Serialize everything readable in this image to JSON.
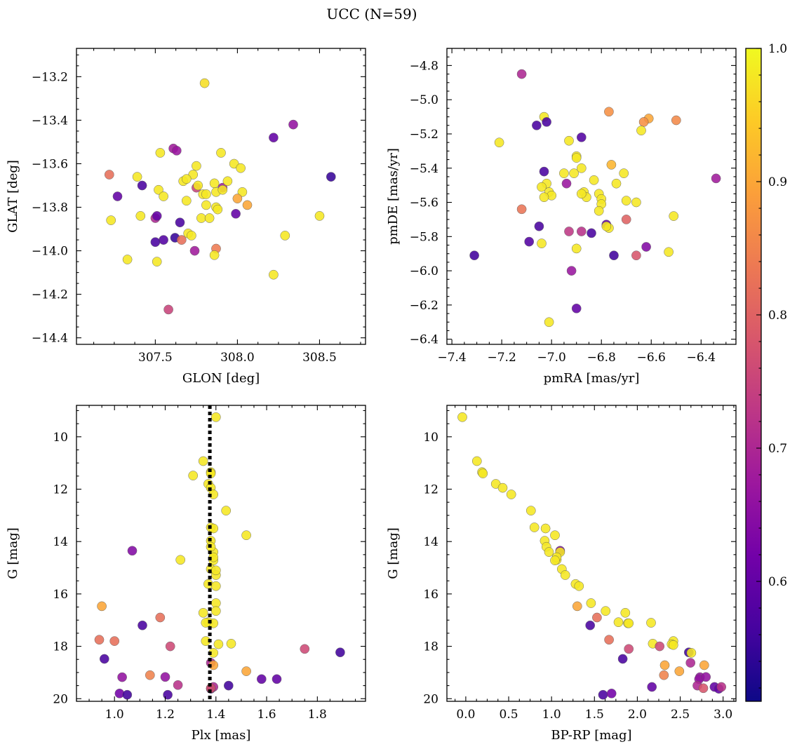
{
  "title": "UCC (N=59)",
  "colorbar": {
    "vmin": 0.51,
    "vmax": 1.0,
    "ticks": [
      0.6,
      0.7,
      0.8,
      0.9,
      1.0
    ],
    "tick_labels": [
      "0.6",
      "0.7",
      "0.8",
      "0.9",
      "1.0"
    ],
    "colormap": "plasma",
    "colormap_stops": [
      "#0d0887",
      "#46039f",
      "#7201a8",
      "#9c179e",
      "#bd3786",
      "#d8576b",
      "#ed7953",
      "#fb9f3a",
      "#fdca26",
      "#f0f921"
    ]
  },
  "chart_data": [
    {
      "type": "scatter",
      "name": "spatial",
      "xlabel": "GLON [deg]",
      "ylabel": "GLAT [deg]",
      "xlim": [
        307.02,
        308.78
      ],
      "ylim": [
        -14.43,
        -13.07
      ],
      "xticks": [
        307.5,
        308.0,
        308.5
      ],
      "xtick_labels": [
        "307.5",
        "308.0",
        "308.5"
      ],
      "yticks": [
        -14.4,
        -14.2,
        -14.0,
        -13.8,
        -13.6,
        -13.4,
        -13.2
      ],
      "ytick_labels": [
        "−14.4",
        "−14.2",
        "−14.0",
        "−13.8",
        "−13.6",
        "−13.4",
        "−13.2"
      ],
      "x": [
        307.8,
        308.34,
        308.22,
        307.61,
        307.63,
        307.53,
        307.9,
        307.75,
        307.98,
        308.02,
        307.22,
        307.39,
        307.27,
        307.42,
        307.52,
        307.67,
        307.73,
        307.69,
        307.86,
        307.91,
        307.94,
        308.03,
        308.0,
        308.06,
        307.87,
        307.55,
        307.41,
        307.23,
        307.5,
        307.51,
        307.69,
        307.81,
        307.75,
        307.78,
        307.83,
        307.87,
        307.99,
        307.65,
        307.7,
        307.55,
        307.5,
        307.62,
        307.72,
        307.66,
        307.87,
        307.74,
        307.51,
        307.33,
        307.86,
        308.22,
        308.29,
        308.5,
        308.57,
        307.58,
        307.88,
        307.79,
        307.91,
        307.81,
        307.76
      ],
      "y": [
        -13.23,
        -13.42,
        -13.48,
        -13.53,
        -13.54,
        -13.55,
        -13.55,
        -13.61,
        -13.6,
        -13.62,
        -13.65,
        -13.66,
        -13.75,
        -13.7,
        -13.72,
        -13.68,
        -13.65,
        -13.67,
        -13.69,
        -13.71,
        -13.68,
        -13.73,
        -13.76,
        -13.79,
        -13.73,
        -13.75,
        -13.84,
        -13.86,
        -13.85,
        -13.84,
        -13.77,
        -13.79,
        -13.71,
        -13.85,
        -13.85,
        -13.8,
        -13.83,
        -13.87,
        -13.92,
        -13.95,
        -13.96,
        -13.94,
        -13.93,
        -13.95,
        -13.99,
        -14.0,
        -14.05,
        -14.04,
        -14.02,
        -14.11,
        -13.93,
        -13.84,
        -13.66,
        -14.27,
        -13.81,
        -13.74,
        -13.72,
        -13.74,
        -13.7
      ],
      "c": [
        0.97,
        0.66,
        0.6,
        0.68,
        0.67,
        0.98,
        0.98,
        0.98,
        0.98,
        0.98,
        0.82,
        0.98,
        0.6,
        0.57,
        0.98,
        0.98,
        0.98,
        0.98,
        0.98,
        0.68,
        0.98,
        0.98,
        0.9,
        0.9,
        0.98,
        0.98,
        0.98,
        0.98,
        0.7,
        0.6,
        0.98,
        0.98,
        0.75,
        0.98,
        0.98,
        0.98,
        0.6,
        0.57,
        0.98,
        0.58,
        0.57,
        0.55,
        0.98,
        0.82,
        0.84,
        0.68,
        0.98,
        0.98,
        0.98,
        0.98,
        0.98,
        0.98,
        0.55,
        0.75,
        0.98,
        0.98,
        0.98,
        0.98,
        0.98
      ]
    },
    {
      "type": "scatter",
      "name": "proper-motion",
      "xlabel": "pmRA [mas/yr]",
      "ylabel": "pmDE [mas/yr]",
      "xlim": [
        -7.42,
        -6.26
      ],
      "ylim": [
        -6.43,
        -4.7
      ],
      "xticks": [
        -7.4,
        -7.2,
        -7.0,
        -6.8,
        -6.6,
        -6.4
      ],
      "xtick_labels": [
        "−7.4",
        "−7.2",
        "−7.0",
        "−6.8",
        "−6.6",
        "−6.4"
      ],
      "yticks": [
        -6.4,
        -6.2,
        -6.0,
        -5.8,
        -5.6,
        -5.4,
        -5.2,
        -5.0,
        -4.8
      ],
      "ytick_labels": [
        "−6.4",
        "−6.2",
        "−6.0",
        "−5.8",
        "−5.6",
        "−5.4",
        "−5.2",
        "−5.0",
        "−4.8"
      ],
      "x": [
        -7.12,
        -7.03,
        -7.06,
        -7.02,
        -6.88,
        -6.77,
        -6.61,
        -6.63,
        -6.5,
        -6.64,
        -7.21,
        -6.93,
        -6.9,
        -6.9,
        -7.03,
        -6.95,
        -6.91,
        -6.76,
        -6.88,
        -6.83,
        -6.71,
        -6.94,
        -6.74,
        -7.02,
        -7.04,
        -7.01,
        -7.0,
        -6.87,
        -6.86,
        -6.81,
        -6.8,
        -6.8,
        -6.81,
        -6.7,
        -6.66,
        -6.51,
        -7.12,
        -7.03,
        -6.78,
        -6.77,
        -6.7,
        -7.05,
        -7.09,
        -6.88,
        -6.93,
        -6.62,
        -6.53,
        -6.9,
        -6.66,
        -6.75,
        -6.92,
        -7.31,
        -6.34,
        -6.9,
        -7.01,
        -6.84,
        -7.04,
        -6.78,
        -6.88
      ],
      "y": [
        -4.85,
        -5.1,
        -5.15,
        -5.13,
        -5.22,
        -5.07,
        -5.11,
        -5.13,
        -5.12,
        -5.18,
        -5.25,
        -5.24,
        -5.33,
        -5.34,
        -5.42,
        -5.43,
        -5.43,
        -5.38,
        -5.4,
        -5.47,
        -5.43,
        -5.49,
        -5.49,
        -5.49,
        -5.51,
        -5.54,
        -5.56,
        -5.54,
        -5.57,
        -5.55,
        -5.58,
        -5.61,
        -5.65,
        -5.59,
        -5.6,
        -5.68,
        -5.64,
        -5.57,
        -5.73,
        -5.75,
        -5.7,
        -5.74,
        -5.83,
        -5.77,
        -5.77,
        -5.86,
        -5.89,
        -5.87,
        -5.91,
        -5.91,
        -6.0,
        -5.91,
        -5.46,
        -6.22,
        -6.3,
        -5.78,
        -5.84,
        -5.74,
        -5.55
      ],
      "c": [
        0.7,
        0.98,
        0.57,
        0.57,
        0.58,
        0.87,
        0.9,
        0.87,
        0.86,
        0.98,
        0.98,
        0.98,
        0.98,
        0.98,
        0.57,
        0.98,
        0.98,
        0.92,
        0.98,
        0.98,
        0.98,
        0.67,
        0.98,
        0.98,
        0.98,
        0.98,
        0.98,
        0.98,
        0.98,
        0.98,
        0.98,
        0.98,
        0.98,
        0.98,
        0.98,
        0.98,
        0.83,
        0.98,
        0.6,
        0.98,
        0.8,
        0.57,
        0.58,
        0.72,
        0.73,
        0.64,
        0.98,
        0.98,
        0.78,
        0.56,
        0.67,
        0.56,
        0.68,
        0.6,
        0.98,
        0.57,
        0.98,
        0.98,
        0.98
      ]
    },
    {
      "type": "scatter",
      "name": "plx-mag",
      "xlabel": "Plx [mas]",
      "ylabel": "G [mag]",
      "xlim": [
        0.85,
        1.99
      ],
      "ylim": [
        20.1,
        8.8
      ],
      "y_inverted": true,
      "vline_x": 1.376,
      "vline_style": "dotted",
      "xticks": [
        1.0,
        1.2,
        1.4,
        1.6,
        1.8
      ],
      "xtick_labels": [
        "1.0",
        "1.2",
        "1.4",
        "1.6",
        "1.8"
      ],
      "yticks": [
        10,
        12,
        14,
        16,
        18,
        20
      ],
      "ytick_labels": [
        "10",
        "12",
        "14",
        "16",
        "18",
        "20"
      ],
      "x": [
        1.4,
        1.35,
        1.38,
        1.31,
        1.37,
        1.38,
        1.39,
        1.38,
        1.44,
        1.38,
        1.39,
        1.52,
        1.38,
        1.07,
        1.39,
        1.38,
        1.26,
        1.39,
        1.39,
        1.38,
        1.4,
        1.37,
        1.4,
        1.4,
        1.35,
        1.37,
        1.39,
        1.4,
        1.36,
        0.95,
        1.18,
        1.11,
        1.0,
        1.41,
        1.46,
        1.36,
        0.94,
        1.75,
        1.22,
        1.89,
        0.96,
        1.38,
        1.39,
        1.52,
        1.14,
        1.2,
        1.03,
        1.25,
        1.58,
        1.64,
        1.45,
        1.39,
        1.38,
        1.21,
        1.02,
        1.05,
        1.38,
        1.39,
        1.4
      ],
      "y": [
        9.25,
        10.93,
        11.35,
        11.48,
        11.8,
        11.95,
        12.2,
        11.4,
        12.82,
        13.46,
        13.5,
        13.76,
        13.97,
        14.35,
        14.4,
        14.2,
        14.7,
        14.72,
        14.6,
        15.05,
        15.28,
        15.62,
        15.7,
        16.35,
        16.72,
        17.08,
        17.12,
        16.65,
        17.8,
        16.47,
        16.9,
        17.2,
        17.8,
        17.92,
        17.9,
        17.1,
        17.75,
        18.1,
        18.0,
        18.23,
        18.48,
        18.63,
        18.72,
        18.95,
        19.1,
        19.17,
        19.18,
        19.48,
        19.25,
        19.25,
        19.5,
        19.55,
        19.62,
        19.85,
        19.8,
        19.85,
        19.6,
        18.25,
        15.1
      ],
      "c": [
        0.98,
        0.98,
        0.98,
        0.98,
        0.98,
        0.98,
        0.98,
        0.98,
        0.98,
        0.98,
        0.98,
        0.98,
        0.98,
        0.64,
        0.98,
        0.98,
        0.98,
        0.98,
        0.98,
        0.98,
        0.98,
        0.98,
        0.98,
        0.98,
        0.98,
        0.98,
        0.98,
        0.98,
        0.98,
        0.9,
        0.82,
        0.57,
        0.82,
        0.98,
        0.98,
        0.98,
        0.82,
        0.76,
        0.76,
        0.56,
        0.57,
        0.7,
        0.9,
        0.9,
        0.85,
        0.66,
        0.66,
        0.72,
        0.6,
        0.6,
        0.56,
        0.7,
        0.56,
        0.57,
        0.62,
        0.56,
        0.78,
        0.98,
        0.98
      ]
    },
    {
      "type": "scatter",
      "name": "color-mag",
      "xlabel": "BP-RP [mag]",
      "ylabel": "G [mag]",
      "xlim": [
        -0.22,
        3.15
      ],
      "ylim": [
        20.1,
        8.8
      ],
      "y_inverted": true,
      "xticks": [
        0.0,
        0.5,
        1.0,
        1.5,
        2.0,
        2.5,
        3.0
      ],
      "xtick_labels": [
        "0.0",
        "0.5",
        "1.0",
        "1.5",
        "2.0",
        "2.5",
        "3.0"
      ],
      "yticks": [
        10,
        12,
        14,
        16,
        18,
        20
      ],
      "ytick_labels": [
        "10",
        "12",
        "14",
        "16",
        "18",
        "20"
      ],
      "x": [
        -0.04,
        0.13,
        0.19,
        0.2,
        0.35,
        0.43,
        0.53,
        0.76,
        0.8,
        0.93,
        1.04,
        1.06,
        0.92,
        1.1,
        0.94,
        1.1,
        1.06,
        1.04,
        0.97,
        1.12,
        1.16,
        1.28,
        1.32,
        1.46,
        1.63,
        1.78,
        1.89,
        1.86,
        1.3,
        1.45,
        1.53,
        1.67,
        1.9,
        2.16,
        2.18,
        2.42,
        2.4,
        2.32,
        2.26,
        2.6,
        2.63,
        2.78,
        2.73,
        2.49,
        2.31,
        1.83,
        2.72,
        2.8,
        2.7,
        2.62,
        2.77,
        2.9,
        2.95,
        2.98,
        2.17,
        1.6,
        1.7,
        1.9,
        2.42
      ],
      "y": [
        9.25,
        10.93,
        11.35,
        11.4,
        11.8,
        11.95,
        12.2,
        12.82,
        13.46,
        13.5,
        13.76,
        14.7,
        13.97,
        14.35,
        14.2,
        14.4,
        14.6,
        14.72,
        14.4,
        15.05,
        15.28,
        15.62,
        15.7,
        16.35,
        16.65,
        17.08,
        17.12,
        16.72,
        16.47,
        17.2,
        16.9,
        17.75,
        18.1,
        17.1,
        17.9,
        17.8,
        17.92,
        18.72,
        18.0,
        18.23,
        18.25,
        18.72,
        19.18,
        18.95,
        19.1,
        18.48,
        19.25,
        19.17,
        19.5,
        18.63,
        19.6,
        19.55,
        19.62,
        19.55,
        19.55,
        19.85,
        19.8,
        17.12,
        17.95
      ],
      "c": [
        0.98,
        0.98,
        0.98,
        0.98,
        0.98,
        0.98,
        0.98,
        0.98,
        0.98,
        0.98,
        0.98,
        0.98,
        0.98,
        0.64,
        0.98,
        0.98,
        0.98,
        0.98,
        0.98,
        0.98,
        0.98,
        0.98,
        0.98,
        0.98,
        0.98,
        0.98,
        0.98,
        0.98,
        0.9,
        0.57,
        0.82,
        0.82,
        0.76,
        0.98,
        0.98,
        0.98,
        0.98,
        0.9,
        0.76,
        0.56,
        0.98,
        0.9,
        0.66,
        0.9,
        0.85,
        0.57,
        0.66,
        0.66,
        0.7,
        0.7,
        0.78,
        0.6,
        0.6,
        0.72,
        0.6,
        0.57,
        0.62,
        0.98,
        0.98
      ]
    }
  ]
}
